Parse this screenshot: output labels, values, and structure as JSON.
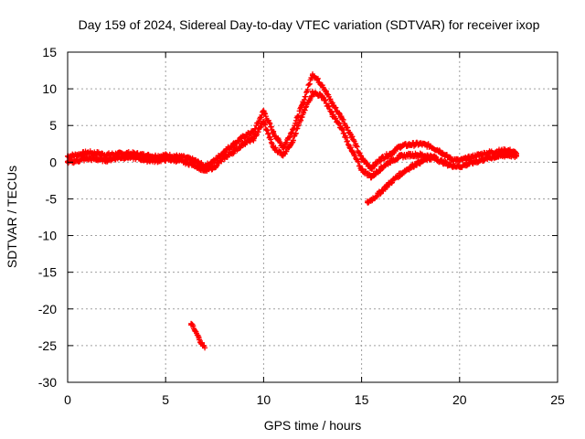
{
  "chart_data": {
    "type": "scatter",
    "title": "Day 159 of 2024, Sidereal Day-to-day VTEC variation (SDTVAR) for receiver ixop",
    "xlabel": "GPS time / hours",
    "ylabel": "SDTVAR / TECUs",
    "xlim": [
      0,
      25
    ],
    "ylim": [
      -30,
      15
    ],
    "xticks": [
      0,
      5,
      10,
      15,
      20,
      25
    ],
    "yticks": [
      15,
      10,
      5,
      0,
      -5,
      -10,
      -15,
      -20,
      -25,
      -30
    ],
    "grid": true,
    "marker": "+",
    "color": "#ff0000",
    "series": [
      {
        "name": "main-track-upper",
        "x": [
          0,
          0.5,
          1,
          1.5,
          2,
          2.5,
          3,
          3.5,
          4,
          4.5,
          5,
          5.5,
          6,
          6.5,
          7,
          7.5,
          8,
          8.5,
          9,
          9.5,
          10,
          10.5,
          11,
          11.5,
          12,
          12.5,
          13,
          13.5,
          14,
          14.5,
          15,
          15.5,
          16,
          16.5,
          17,
          17.5,
          18,
          18.5,
          19,
          19.5,
          20,
          20.5,
          21,
          21.5,
          22,
          22.5,
          22.9
        ],
        "y": [
          0.8,
          1.0,
          1.3,
          1.2,
          1.0,
          1.1,
          1.2,
          1.1,
          0.9,
          0.8,
          0.9,
          0.8,
          0.6,
          0.2,
          -0.6,
          0.2,
          1.5,
          2.5,
          3.5,
          4.2,
          7.0,
          4.0,
          2.0,
          4.5,
          8.0,
          12.0,
          10.5,
          8.0,
          6.0,
          3.5,
          0.5,
          -0.8,
          0.5,
          1.2,
          2.2,
          2.4,
          2.5,
          2.2,
          1.5,
          0.5,
          0.2,
          0.6,
          1.0,
          1.3,
          1.5,
          1.6,
          1.2
        ]
      },
      {
        "name": "main-track-lower",
        "x": [
          0,
          0.5,
          1,
          1.5,
          2,
          2.5,
          3,
          3.5,
          4,
          4.5,
          5,
          5.5,
          6,
          6.5,
          7,
          7.5,
          8,
          8.5,
          9,
          9.5,
          10,
          10.5,
          11,
          11.5,
          12,
          12.5,
          13,
          13.5,
          14,
          14.5,
          15,
          15.5,
          16,
          16.5,
          17,
          17.5,
          18,
          18.5,
          19,
          19.5,
          20,
          20.5,
          21,
          21.5,
          22,
          22.5,
          22.9
        ],
        "y": [
          0.0,
          0.2,
          0.5,
          0.4,
          0.3,
          0.6,
          0.7,
          0.6,
          0.3,
          0.2,
          0.4,
          0.3,
          0.0,
          -0.4,
          -1.2,
          -0.6,
          0.6,
          1.5,
          2.6,
          3.2,
          5.5,
          2.0,
          1.0,
          3.0,
          6.5,
          9.5,
          9.0,
          6.5,
          4.5,
          1.5,
          -1.0,
          -2.0,
          -0.8,
          0.2,
          0.8,
          1.0,
          1.0,
          0.8,
          0.2,
          -0.4,
          -0.6,
          -0.2,
          0.2,
          0.6,
          0.8,
          1.0,
          0.8
        ]
      },
      {
        "name": "descending-branch",
        "x": [
          15.3,
          15.8,
          16.3,
          16.8,
          17.3,
          17.8,
          18.3,
          18.8
        ],
        "y": [
          -5.5,
          -4.5,
          -3.2,
          -2.0,
          -1.0,
          -0.2,
          0.4,
          0.7
        ]
      },
      {
        "name": "outlier-segment",
        "x": [
          6.3,
          6.5,
          6.7,
          6.9,
          7.0
        ],
        "y": [
          -22.0,
          -23.0,
          -24.0,
          -25.0,
          -25.3
        ]
      }
    ]
  }
}
